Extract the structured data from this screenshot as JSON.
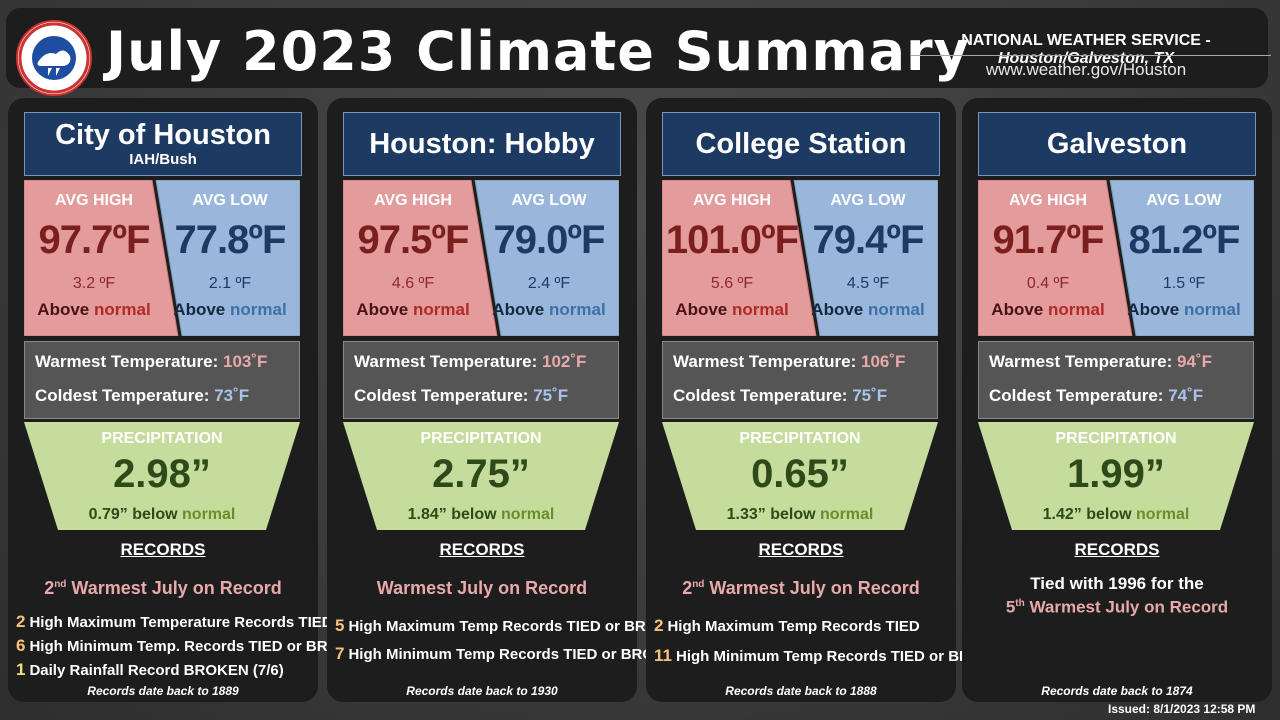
{
  "title": "July 2023 Climate Summary",
  "agency": "NATIONAL WEATHER SERVICE - ",
  "office": "Houston/Galveston, TX",
  "website": "www.weather.gov/Houston",
  "issued": "Issued: 8/1/2023 12:58 PM",
  "labels": {
    "avg_high": "AVG HIGH",
    "avg_low": "AVG LOW",
    "above": "Above",
    "normal": "normal",
    "below": "below",
    "warmest": "Warmest Temperature:",
    "coldest": "Coldest Temperature:",
    "precip": "PRECIPITATION",
    "records": "RECORDS"
  },
  "colors": {
    "high_fill": "#e39b9b",
    "low_fill": "#9ab7db",
    "precip_fill": "#c6dc9c",
    "station_fill": "#1d3a63"
  },
  "stations": [
    {
      "name": "City of Houston",
      "sub": "IAH/Bush",
      "avg_high": "97.7ºF",
      "high_dep": "3.2 ºF",
      "avg_low": "77.8ºF",
      "low_dep": "2.1 ºF",
      "warmest": "103˚F",
      "coldest": "73˚F",
      "precip": "2.98”",
      "precip_dep": "0.79” ",
      "record_rank": "2",
      "record_rank_sup": "nd",
      "record_main": " Warmest July on Record",
      "records": [
        {
          "n": "2",
          "text": "High Maximum Temperature Records TIED"
        },
        {
          "n": "6",
          "text": "High Minimum Temp. Records TIED or BROKEN"
        },
        {
          "n": "1",
          "text": "Daily Rainfall Record BROKEN (7/6)"
        }
      ],
      "since": "Records date back to 1889"
    },
    {
      "name": "Houston: Hobby",
      "sub": "",
      "avg_high": "97.5ºF",
      "high_dep": "4.6 ºF",
      "avg_low": "79.0ºF",
      "low_dep": "2.4 ºF",
      "warmest": "102˚F",
      "coldest": "75˚F",
      "precip": "2.75”",
      "precip_dep": "1.84” ",
      "record_main": "Warmest July on Record",
      "records": [
        {
          "n": "5",
          "text": "High Maximum Temp Records TIED or BROKEN"
        },
        {
          "n": "7",
          "text": "High Minimum Temp Records TIED or BROKEN"
        }
      ],
      "since": "Records date back to 1930"
    },
    {
      "name": "College Station",
      "sub": "",
      "avg_high": "101.0ºF",
      "high_dep": "5.6 ºF",
      "avg_low": "79.4ºF",
      "low_dep": "4.5 ºF",
      "warmest": "106˚F",
      "coldest": "75˚F",
      "precip": "0.65”",
      "precip_dep": "1.33” ",
      "record_rank": "2",
      "record_rank_sup": "nd",
      "record_main": "  Warmest July on Record",
      "records": [
        {
          "n": "2",
          "text": "High Maximum Temp Records TIED"
        },
        {
          "n": "11",
          "text": "High Minimum Temp Records TIED or BROKEN"
        }
      ],
      "since": "Records date back to  1888"
    },
    {
      "name": "Galveston",
      "sub": "",
      "avg_high": "91.7ºF",
      "high_dep": "0.4 ºF",
      "avg_low": "81.2ºF",
      "low_dep": "1.5 ºF",
      "warmest": "94˚F",
      "coldest": "74˚F",
      "precip": "1.99”",
      "precip_dep": "1.42” ",
      "tied_text": "Tied with 1996 for the",
      "tied_rank": "5",
      "tied_rank_sup": "th",
      "tied_main": " Warmest July on Record",
      "since": "Records date back to 1874"
    }
  ]
}
